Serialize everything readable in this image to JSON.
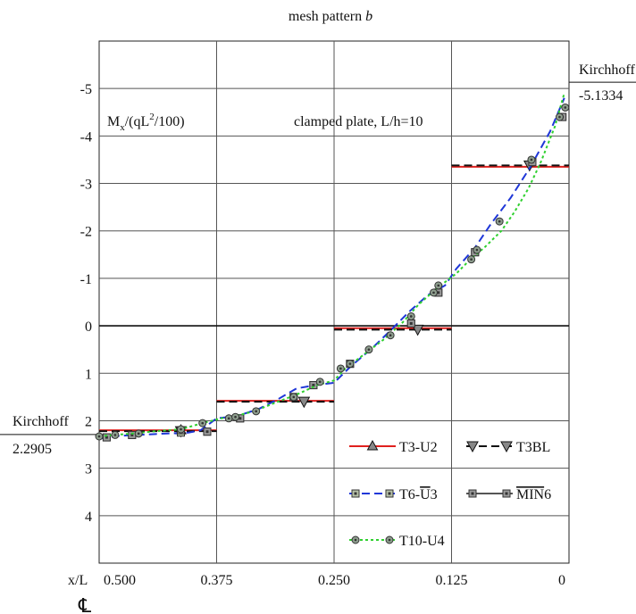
{
  "chart_data": {
    "type": "line",
    "title": "mesh pattern b",
    "title_prefix": "mesh pattern",
    "title_italic": "b",
    "ylabel": "M",
    "ylabel_sub": "x",
    "ylabel_tail": "/(qL",
    "ylabel_sup": "2",
    "ylabel_end": "/100)",
    "annotation": "clamped plate, L/h=10",
    "xlabel": "x/L",
    "centerline_symbol": "℄",
    "x_reversed": true,
    "y_reversed": true,
    "xlim": [
      0.5,
      0.0
    ],
    "ylim": [
      5.0,
      -6.0
    ],
    "xtick_labels": [
      {
        "value": 0.5,
        "label": "0.500"
      },
      {
        "value": 0.375,
        "label": "0.375"
      },
      {
        "value": 0.25,
        "label": "0.250"
      },
      {
        "value": 0.125,
        "label": "0.125"
      },
      {
        "value": 0.0,
        "label": "0"
      }
    ],
    "ytick_labels": [
      {
        "value": -5,
        "label": "-5"
      },
      {
        "value": -4,
        "label": "-4"
      },
      {
        "value": -3,
        "label": "-3"
      },
      {
        "value": -2,
        "label": "-2"
      },
      {
        "value": -1,
        "label": "-1"
      },
      {
        "value": 0,
        "label": "0"
      },
      {
        "value": 1,
        "label": "1"
      },
      {
        "value": 2,
        "label": "2"
      },
      {
        "value": 3,
        "label": "3"
      },
      {
        "value": 4,
        "label": "4"
      }
    ],
    "kirchhoff": [
      {
        "label": "Kirchhoff",
        "value_label": "2.2905",
        "value": 2.2905,
        "side": "left"
      },
      {
        "label": "Kirchhoff",
        "value_label": "-5.1334",
        "value": -5.1334,
        "side": "right"
      }
    ],
    "series": [
      {
        "name": "T3-U2",
        "color": "#e0201e",
        "dash": "solid",
        "marker": "triangle",
        "kind": "step",
        "segments": [
          {
            "x": [
              0.5,
              0.375
            ],
            "y": 2.2
          },
          {
            "x": [
              0.375,
              0.25
            ],
            "y": 1.58
          },
          {
            "x": [
              0.25,
              0.125
            ],
            "y": 0.05
          },
          {
            "x": [
              0.125,
              0.0
            ],
            "y": -3.35
          }
        ],
        "markers": [
          {
            "x": 0.413,
            "y": 2.2
          }
        ]
      },
      {
        "name": "T3BL",
        "color": "#111111",
        "dash": "dashed",
        "marker": "triangle-down",
        "kind": "step",
        "segments": [
          {
            "x": [
              0.5,
              0.375
            ],
            "y": 2.22
          },
          {
            "x": [
              0.375,
              0.25
            ],
            "y": 1.6
          },
          {
            "x": [
              0.25,
              0.125
            ],
            "y": 0.08
          },
          {
            "x": [
              0.125,
              0.0
            ],
            "y": -3.38
          }
        ],
        "markers": [
          {
            "x": 0.413,
            "y": 2.22
          },
          {
            "x": 0.282,
            "y": 1.6
          },
          {
            "x": 0.161,
            "y": 0.08
          },
          {
            "x": 0.042,
            "y": -3.38
          }
        ]
      },
      {
        "name": "T6-U3",
        "name_prefix": "T6-",
        "name_overbar": "U",
        "name_suffix": "3",
        "color": "#1f37d8",
        "dash": "dashed",
        "marker": "square",
        "kind": "curve",
        "x": [
          0.5,
          0.48,
          0.44,
          0.405,
          0.392,
          0.375,
          0.353,
          0.33,
          0.31,
          0.29,
          0.27,
          0.25,
          0.232,
          0.21,
          0.19,
          0.17,
          0.15,
          0.132,
          0.12,
          0.1,
          0.083,
          0.062,
          0.041,
          0.02,
          0.005
        ],
        "y": [
          2.38,
          2.32,
          2.28,
          2.25,
          2.2,
          1.95,
          1.9,
          1.75,
          1.55,
          1.32,
          1.25,
          1.2,
          0.85,
          0.48,
          0.1,
          -0.3,
          -0.65,
          -0.85,
          -1.2,
          -1.65,
          -2.15,
          -2.7,
          -3.35,
          -4.1,
          -4.8
        ],
        "markers": [
          {
            "x": 0.492,
            "y": 2.35
          },
          {
            "x": 0.465,
            "y": 2.3
          },
          {
            "x": 0.413,
            "y": 2.25
          },
          {
            "x": 0.385,
            "y": 2.23
          },
          {
            "x": 0.35,
            "y": 1.95
          },
          {
            "x": 0.293,
            "y": 1.5
          },
          {
            "x": 0.272,
            "y": 1.25
          },
          {
            "x": 0.233,
            "y": 0.8
          },
          {
            "x": 0.168,
            "y": -0.05
          },
          {
            "x": 0.139,
            "y": -0.7
          },
          {
            "x": 0.1,
            "y": -1.55
          },
          {
            "x": 0.039,
            "y": -3.45
          },
          {
            "x": 0.007,
            "y": -4.4
          }
        ]
      },
      {
        "name": "MIN6",
        "name_prefix": "",
        "name_overbar": "MIN",
        "name_suffix": "6",
        "color": "#555555",
        "dash": "solid",
        "marker": "square-gray",
        "kind": "markers",
        "markers": [
          {
            "x": 0.492,
            "y": 2.35
          },
          {
            "x": 0.465,
            "y": 2.3
          },
          {
            "x": 0.413,
            "y": 2.2
          },
          {
            "x": 0.385,
            "y": 2.23
          },
          {
            "x": 0.35,
            "y": 1.95
          },
          {
            "x": 0.293,
            "y": 1.5
          },
          {
            "x": 0.272,
            "y": 1.25
          },
          {
            "x": 0.233,
            "y": 0.8
          },
          {
            "x": 0.168,
            "y": -0.05
          },
          {
            "x": 0.139,
            "y": -0.7
          },
          {
            "x": 0.1,
            "y": -1.55
          },
          {
            "x": 0.039,
            "y": -3.45
          },
          {
            "x": 0.007,
            "y": -4.4
          }
        ]
      },
      {
        "name": "T10-U4",
        "color": "#2fd02f",
        "dash": "dotted",
        "marker": "circle",
        "kind": "curve",
        "x": [
          0.5,
          0.485,
          0.465,
          0.44,
          0.413,
          0.39,
          0.37,
          0.355,
          0.335,
          0.31,
          0.29,
          0.268,
          0.25,
          0.238,
          0.218,
          0.198,
          0.178,
          0.16,
          0.14,
          0.12,
          0.105,
          0.09,
          0.072,
          0.058,
          0.043,
          0.03,
          0.015,
          0.005
        ],
        "y": [
          2.33,
          2.3,
          2.27,
          2.22,
          2.18,
          2.05,
          1.95,
          1.9,
          1.8,
          1.6,
          1.45,
          1.25,
          1.15,
          0.9,
          0.6,
          0.3,
          -0.05,
          -0.45,
          -0.8,
          -1.1,
          -1.4,
          -1.65,
          -2.0,
          -2.4,
          -2.9,
          -3.45,
          -4.2,
          -4.9
        ],
        "markers": [
          {
            "x": 0.5,
            "y": 2.33
          },
          {
            "x": 0.483,
            "y": 2.3
          },
          {
            "x": 0.458,
            "y": 2.27
          },
          {
            "x": 0.413,
            "y": 2.18
          },
          {
            "x": 0.39,
            "y": 2.05
          },
          {
            "x": 0.362,
            "y": 1.95
          },
          {
            "x": 0.355,
            "y": 1.92
          },
          {
            "x": 0.333,
            "y": 1.8
          },
          {
            "x": 0.293,
            "y": 1.5
          },
          {
            "x": 0.265,
            "y": 1.18
          },
          {
            "x": 0.243,
            "y": 0.9
          },
          {
            "x": 0.233,
            "y": 0.8
          },
          {
            "x": 0.213,
            "y": 0.5
          },
          {
            "x": 0.19,
            "y": 0.2
          },
          {
            "x": 0.168,
            "y": -0.2
          },
          {
            "x": 0.144,
            "y": -0.7
          },
          {
            "x": 0.139,
            "y": -0.85
          },
          {
            "x": 0.104,
            "y": -1.4
          },
          {
            "x": 0.098,
            "y": -1.6
          },
          {
            "x": 0.074,
            "y": -2.2
          },
          {
            "x": 0.04,
            "y": -3.5
          },
          {
            "x": 0.01,
            "y": -4.4
          },
          {
            "x": 0.004,
            "y": -4.6
          }
        ]
      }
    ],
    "legend_order": [
      "T3-U2",
      "T3BL",
      "T6-U3",
      "MIN6",
      "T10-U4"
    ]
  }
}
